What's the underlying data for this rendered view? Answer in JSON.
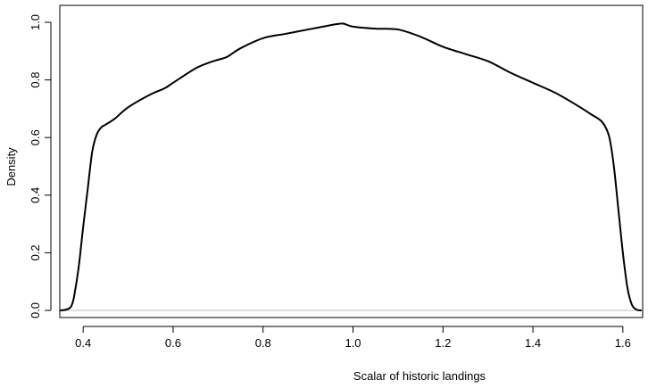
{
  "chart_data": {
    "type": "line",
    "title": "",
    "xlabel": "Scalar of historic landings",
    "ylabel": "Density",
    "xlim": [
      0.35,
      1.64
    ],
    "ylim": [
      0.0,
      1.0
    ],
    "x_ticks": [
      {
        "value": 0.4,
        "label": "0.4"
      },
      {
        "value": 0.6,
        "label": "0.6"
      },
      {
        "value": 0.8,
        "label": "0.8"
      },
      {
        "value": 1.0,
        "label": "1.0"
      },
      {
        "value": 1.2,
        "label": "1.2"
      },
      {
        "value": 1.4,
        "label": "1.4"
      },
      {
        "value": 1.6,
        "label": "1.6"
      }
    ],
    "y_ticks": [
      {
        "value": 0.0,
        "label": "0.0"
      },
      {
        "value": 0.2,
        "label": "0.2"
      },
      {
        "value": 0.4,
        "label": "0.4"
      },
      {
        "value": 0.6,
        "label": "0.6"
      },
      {
        "value": 0.8,
        "label": "0.8"
      },
      {
        "value": 1.0,
        "label": "1.0"
      }
    ],
    "baseline": {
      "y": 0.0,
      "color": "#bdbdbd"
    },
    "grid": false,
    "legend": "none",
    "line_color": "#000000",
    "series": [
      {
        "x": [
          0.35,
          0.36,
          0.37,
          0.375,
          0.38,
          0.39,
          0.4,
          0.41,
          0.42,
          0.43,
          0.44,
          0.45,
          0.47,
          0.5,
          0.55,
          0.58,
          0.6,
          0.65,
          0.68,
          0.7,
          0.72,
          0.75,
          0.8,
          0.85,
          0.9,
          0.95,
          0.97,
          0.98,
          1.0,
          1.05,
          1.1,
          1.15,
          1.2,
          1.25,
          1.3,
          1.35,
          1.4,
          1.45,
          1.5,
          1.53,
          1.55,
          1.56,
          1.57,
          1.58,
          1.59,
          1.6,
          1.61,
          1.62,
          1.63,
          1.64
        ],
        "y": [
          0.0,
          0.002,
          0.008,
          0.02,
          0.05,
          0.15,
          0.29,
          0.42,
          0.55,
          0.61,
          0.635,
          0.645,
          0.665,
          0.705,
          0.75,
          0.77,
          0.79,
          0.84,
          0.86,
          0.87,
          0.88,
          0.91,
          0.945,
          0.96,
          0.975,
          0.99,
          0.995,
          0.995,
          0.985,
          0.978,
          0.975,
          0.95,
          0.915,
          0.89,
          0.865,
          0.825,
          0.79,
          0.755,
          0.71,
          0.68,
          0.66,
          0.64,
          0.6,
          0.5,
          0.35,
          0.2,
          0.08,
          0.02,
          0.003,
          0.0
        ]
      }
    ]
  }
}
